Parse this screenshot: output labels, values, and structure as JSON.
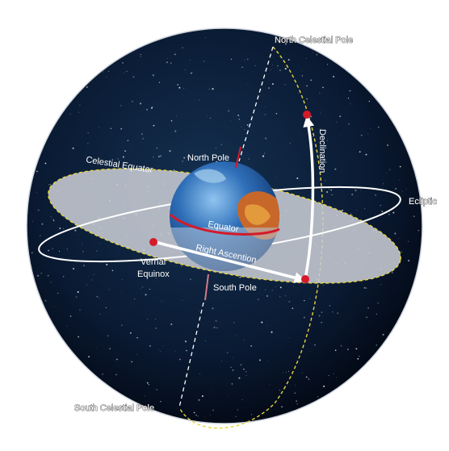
{
  "labels": {
    "north_celestial_pole": "North Celestial Pole",
    "south_celestial_pole": "South Celestial Pole",
    "celestial_equator": "Celestial Equator",
    "north_pole": "North Pole",
    "south_pole": "South Pole",
    "equator": "Equator",
    "ecliptic": "Ecliptic",
    "declination": "Declination",
    "right_ascension": "Right Ascention",
    "vernal": "Vernal",
    "equinox": "Equinox"
  },
  "colors": {
    "sky": "#07142a",
    "equator_plane": "#c8ccd4",
    "equator_edge": "#e7d43a",
    "marker": "#d51a2a",
    "arrow": "#ffffff"
  }
}
